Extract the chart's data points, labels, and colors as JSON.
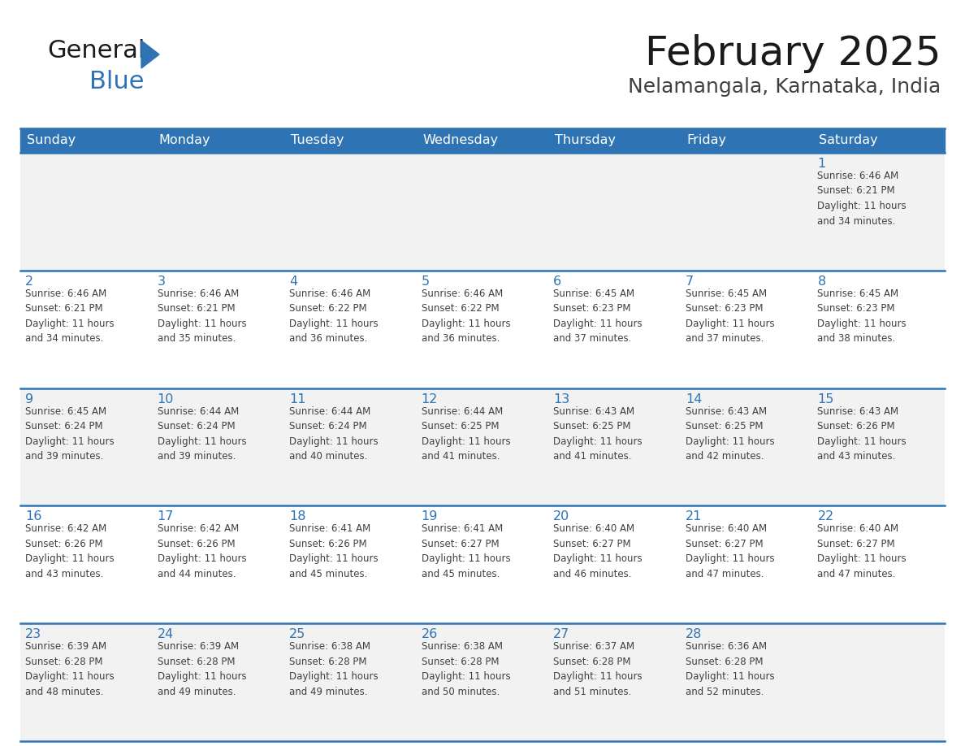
{
  "title": "February 2025",
  "subtitle": "Nelamangala, Karnataka, India",
  "header_bg": "#2E74B5",
  "header_text_color": "#FFFFFF",
  "day_names": [
    "Sunday",
    "Monday",
    "Tuesday",
    "Wednesday",
    "Thursday",
    "Friday",
    "Saturday"
  ],
  "bg_color": "#FFFFFF",
  "cell_bg_row0": "#F2F2F2",
  "cell_bg_row1": "#FFFFFF",
  "cell_bg_row2": "#F2F2F2",
  "cell_bg_row3": "#FFFFFF",
  "cell_bg_row4": "#F2F2F2",
  "border_color": "#2E74B5",
  "day_num_color": "#2E74B5",
  "cell_text_color": "#404040",
  "title_color": "#1A1A1A",
  "subtitle_color": "#404040",
  "logo_general_color": "#1A1A1A",
  "logo_blue_color": "#2E74B5",
  "calendar": [
    [
      {
        "day": null,
        "info": null
      },
      {
        "day": null,
        "info": null
      },
      {
        "day": null,
        "info": null
      },
      {
        "day": null,
        "info": null
      },
      {
        "day": null,
        "info": null
      },
      {
        "day": null,
        "info": null
      },
      {
        "day": 1,
        "info": "Sunrise: 6:46 AM\nSunset: 6:21 PM\nDaylight: 11 hours\nand 34 minutes."
      }
    ],
    [
      {
        "day": 2,
        "info": "Sunrise: 6:46 AM\nSunset: 6:21 PM\nDaylight: 11 hours\nand 34 minutes."
      },
      {
        "day": 3,
        "info": "Sunrise: 6:46 AM\nSunset: 6:21 PM\nDaylight: 11 hours\nand 35 minutes."
      },
      {
        "day": 4,
        "info": "Sunrise: 6:46 AM\nSunset: 6:22 PM\nDaylight: 11 hours\nand 36 minutes."
      },
      {
        "day": 5,
        "info": "Sunrise: 6:46 AM\nSunset: 6:22 PM\nDaylight: 11 hours\nand 36 minutes."
      },
      {
        "day": 6,
        "info": "Sunrise: 6:45 AM\nSunset: 6:23 PM\nDaylight: 11 hours\nand 37 minutes."
      },
      {
        "day": 7,
        "info": "Sunrise: 6:45 AM\nSunset: 6:23 PM\nDaylight: 11 hours\nand 37 minutes."
      },
      {
        "day": 8,
        "info": "Sunrise: 6:45 AM\nSunset: 6:23 PM\nDaylight: 11 hours\nand 38 minutes."
      }
    ],
    [
      {
        "day": 9,
        "info": "Sunrise: 6:45 AM\nSunset: 6:24 PM\nDaylight: 11 hours\nand 39 minutes."
      },
      {
        "day": 10,
        "info": "Sunrise: 6:44 AM\nSunset: 6:24 PM\nDaylight: 11 hours\nand 39 minutes."
      },
      {
        "day": 11,
        "info": "Sunrise: 6:44 AM\nSunset: 6:24 PM\nDaylight: 11 hours\nand 40 minutes."
      },
      {
        "day": 12,
        "info": "Sunrise: 6:44 AM\nSunset: 6:25 PM\nDaylight: 11 hours\nand 41 minutes."
      },
      {
        "day": 13,
        "info": "Sunrise: 6:43 AM\nSunset: 6:25 PM\nDaylight: 11 hours\nand 41 minutes."
      },
      {
        "day": 14,
        "info": "Sunrise: 6:43 AM\nSunset: 6:25 PM\nDaylight: 11 hours\nand 42 minutes."
      },
      {
        "day": 15,
        "info": "Sunrise: 6:43 AM\nSunset: 6:26 PM\nDaylight: 11 hours\nand 43 minutes."
      }
    ],
    [
      {
        "day": 16,
        "info": "Sunrise: 6:42 AM\nSunset: 6:26 PM\nDaylight: 11 hours\nand 43 minutes."
      },
      {
        "day": 17,
        "info": "Sunrise: 6:42 AM\nSunset: 6:26 PM\nDaylight: 11 hours\nand 44 minutes."
      },
      {
        "day": 18,
        "info": "Sunrise: 6:41 AM\nSunset: 6:26 PM\nDaylight: 11 hours\nand 45 minutes."
      },
      {
        "day": 19,
        "info": "Sunrise: 6:41 AM\nSunset: 6:27 PM\nDaylight: 11 hours\nand 45 minutes."
      },
      {
        "day": 20,
        "info": "Sunrise: 6:40 AM\nSunset: 6:27 PM\nDaylight: 11 hours\nand 46 minutes."
      },
      {
        "day": 21,
        "info": "Sunrise: 6:40 AM\nSunset: 6:27 PM\nDaylight: 11 hours\nand 47 minutes."
      },
      {
        "day": 22,
        "info": "Sunrise: 6:40 AM\nSunset: 6:27 PM\nDaylight: 11 hours\nand 47 minutes."
      }
    ],
    [
      {
        "day": 23,
        "info": "Sunrise: 6:39 AM\nSunset: 6:28 PM\nDaylight: 11 hours\nand 48 minutes."
      },
      {
        "day": 24,
        "info": "Sunrise: 6:39 AM\nSunset: 6:28 PM\nDaylight: 11 hours\nand 49 minutes."
      },
      {
        "day": 25,
        "info": "Sunrise: 6:38 AM\nSunset: 6:28 PM\nDaylight: 11 hours\nand 49 minutes."
      },
      {
        "day": 26,
        "info": "Sunrise: 6:38 AM\nSunset: 6:28 PM\nDaylight: 11 hours\nand 50 minutes."
      },
      {
        "day": 27,
        "info": "Sunrise: 6:37 AM\nSunset: 6:28 PM\nDaylight: 11 hours\nand 51 minutes."
      },
      {
        "day": 28,
        "info": "Sunrise: 6:36 AM\nSunset: 6:28 PM\nDaylight: 11 hours\nand 52 minutes."
      },
      {
        "day": null,
        "info": null
      }
    ]
  ],
  "num_rows": 5,
  "num_cols": 7
}
